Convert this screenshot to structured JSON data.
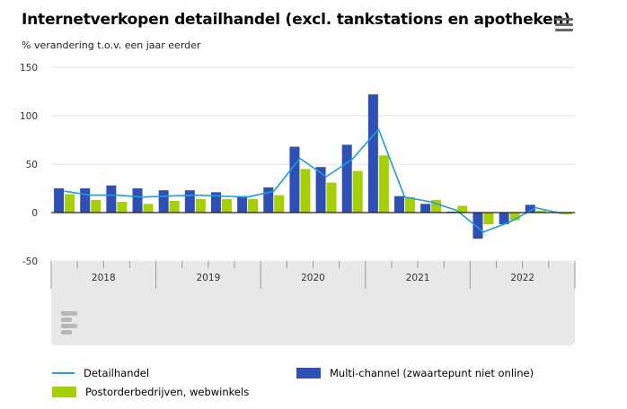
{
  "header": {
    "title": "Internetverkopen detailhandel (excl. tankstations en apotheken)",
    "subtitle": "% verandering t.o.v. een jaar eerder"
  },
  "colors": {
    "detailhandel": "#1c9fd7",
    "multichannel": "#2e4fb3",
    "postorder": "#a6cf07",
    "footer_bg": "#e8e8e8",
    "logo": "#b8b8b8"
  },
  "icons": {
    "menu": "hamburger-menu-icon",
    "logo": "cbs-logo-icon"
  },
  "chart_data": {
    "type": "bar",
    "ylim": [
      -50,
      150
    ],
    "yticks": [
      -50,
      0,
      50,
      100,
      150
    ],
    "ytick_labels": [
      "-50",
      "0",
      "50",
      "100",
      "150"
    ],
    "years": [
      "2018",
      "2019",
      "2020",
      "2021",
      "2022"
    ],
    "quarters_per_year": 4,
    "legend_position": "bottom",
    "series": [
      {
        "name": "Multi-channel (zwaartepunt niet online)",
        "kind": "bar",
        "values": [
          25,
          25,
          28,
          25,
          23,
          23,
          21,
          17,
          26,
          68,
          47,
          70,
          122,
          17,
          9,
          1,
          -27,
          -12,
          8,
          0
        ]
      },
      {
        "name": "Postorderbedrijven, webwinkels",
        "kind": "bar",
        "values": [
          19,
          13,
          11,
          9,
          12,
          14,
          14,
          14,
          18,
          45,
          31,
          43,
          59,
          16,
          13,
          7,
          -12,
          -8,
          2,
          -2
        ]
      },
      {
        "name": "Detailhandel",
        "kind": "line",
        "values": [
          22,
          18,
          18,
          16,
          17,
          18,
          17,
          16,
          22,
          56,
          37,
          55,
          86,
          16,
          11,
          2,
          -20,
          -10,
          5,
          -1
        ]
      }
    ]
  },
  "legend": {
    "detailhandel": "Detailhandel",
    "multichannel": "Multi-channel (zwaartepunt niet online)",
    "postorder": "Postorderbedrijven, webwinkels"
  }
}
